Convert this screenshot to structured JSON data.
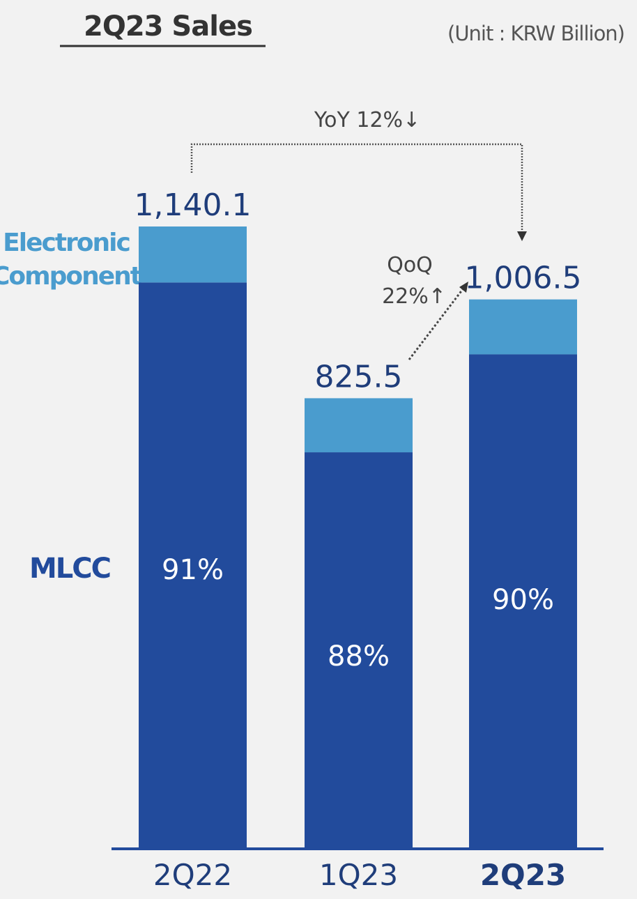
{
  "chart_data": {
    "type": "bar",
    "stacked": true,
    "title": "2Q23 Sales",
    "unit": "(Unit : KRW Billion)",
    "categories": [
      "2Q22",
      "1Q23",
      "2Q23"
    ],
    "totals": [
      1140.1,
      825.5,
      1006.5
    ],
    "total_labels": [
      "1,140.1",
      "825.5",
      "1,006.5"
    ],
    "series": [
      {
        "name": "MLCC",
        "values": [
          1037.5,
          726.4,
          905.9
        ],
        "share_labels": [
          "91%",
          "88%",
          "90%"
        ],
        "color": "#224b9c"
      },
      {
        "name": "Electronic Component",
        "values": [
          102.6,
          99.1,
          100.6
        ],
        "color": "#4a9cce"
      }
    ],
    "legend_lines": [
      "Electronic",
      "Component"
    ],
    "annotations": {
      "yoy": {
        "label": "YoY 12%↓",
        "from": "2Q22",
        "to": "2Q23"
      },
      "qoq": {
        "line1": "QoQ",
        "line2": "22%↑",
        "from": "1Q23",
        "to": "2Q23"
      }
    },
    "ylim": [
      0,
      1140.1
    ],
    "grid": false
  },
  "colors": {
    "background": "#f2f2f2",
    "mlcc": "#224b9c",
    "electronic_component": "#4a9cce",
    "label_text": "#1f3d7a",
    "axis": "#224b9c",
    "annotation_line": "#555555"
  }
}
